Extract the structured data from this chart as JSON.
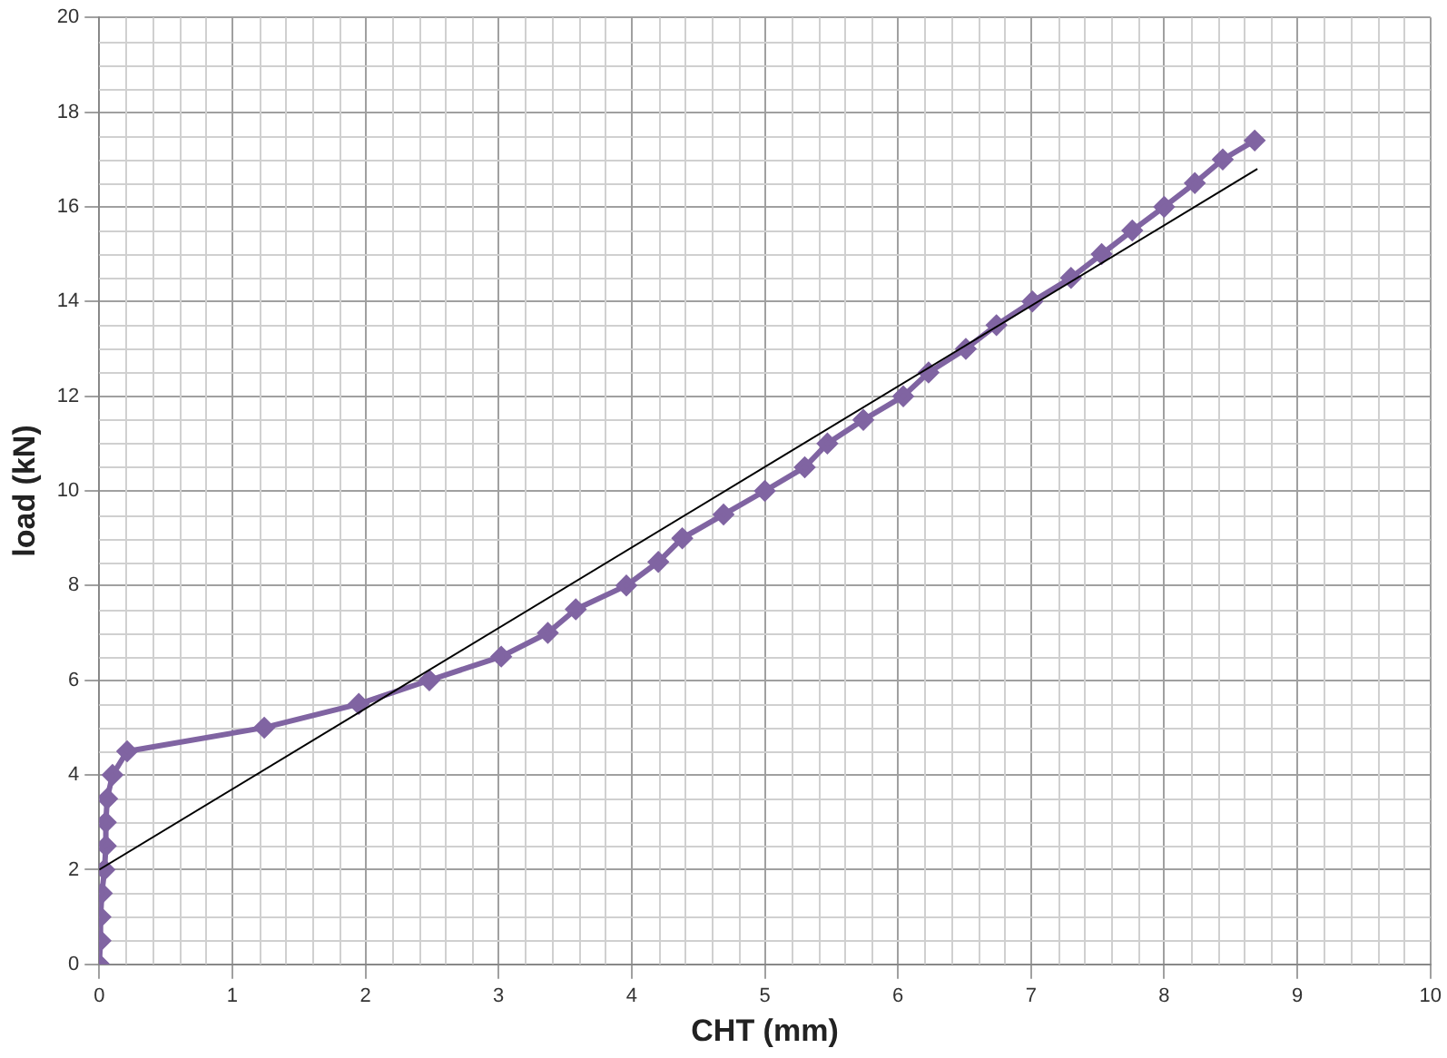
{
  "chart_data": {
    "type": "line",
    "xlabel": "CHT (mm)",
    "ylabel": "load (kN)",
    "xlim": [
      0,
      10
    ],
    "xticks": [
      0,
      1,
      2,
      3,
      4,
      5,
      6,
      7,
      8,
      9,
      10
    ],
    "ylim": [
      0,
      20
    ],
    "yticks": [
      0,
      2,
      4,
      6,
      8,
      10,
      12,
      14,
      16,
      18,
      20
    ],
    "grid": true,
    "legend": false,
    "marker": "diamond",
    "line_style": "solid",
    "series": [
      {
        "color": "#8064a2",
        "x": [
          0,
          0.01,
          0.01,
          0.02,
          0.04,
          0.05,
          0.05,
          0.06,
          0.1,
          0.21,
          1.24,
          1.95,
          2.48,
          3.02,
          3.37,
          3.58,
          3.96,
          4.2,
          4.38,
          4.69,
          5.0,
          5.3,
          5.47,
          5.74,
          6.04,
          6.23,
          6.51,
          6.74,
          7.01,
          7.3,
          7.53,
          7.76,
          8.0,
          8.23,
          8.44,
          8.68
        ],
        "values": [
          0,
          0.5,
          1,
          1.5,
          2,
          2.5,
          3,
          3.5,
          4,
          4.5,
          5,
          5.5,
          6,
          6.5,
          7,
          7.5,
          8,
          8.5,
          9,
          9.5,
          10,
          10.5,
          11,
          11.5,
          12,
          12.5,
          13,
          13.5,
          14,
          14.5,
          15,
          15.5,
          16,
          16.5,
          17,
          17.4
        ]
      },
      {
        "type": "line",
        "color": "#000000",
        "marker": "none",
        "x": [
          0,
          8.7
        ],
        "values": [
          2,
          16.8
        ]
      }
    ]
  }
}
